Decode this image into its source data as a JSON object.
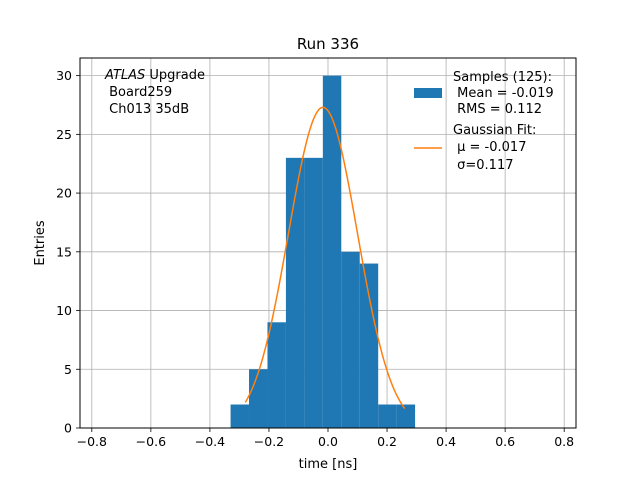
{
  "chart_data": {
    "type": "bar",
    "title": "Run 336",
    "xlabel": "time [ns]",
    "ylabel": "Entries",
    "xlim": [
      -0.84,
      0.84
    ],
    "ylim": [
      0,
      31.5
    ],
    "xticks": [
      -0.8,
      -0.6,
      -0.4,
      -0.2,
      0.0,
      0.2,
      0.4,
      0.6,
      0.8
    ],
    "xtick_labels": [
      "−0.8",
      "−0.6",
      "−0.4",
      "−0.2",
      "0.0",
      "0.2",
      "0.4",
      "0.6",
      "0.8"
    ],
    "yticks": [
      0,
      5,
      10,
      15,
      20,
      25,
      30
    ],
    "ytick_labels": [
      "0",
      "5",
      "10",
      "15",
      "20",
      "25",
      "30"
    ],
    "grid": true,
    "legend_position": "top-right",
    "annotation": {
      "italic": "ATLAS",
      "line1_rest": " Upgrade",
      "line2": " Board259",
      "line3": " Ch013 35dB"
    },
    "series": [
      {
        "name": "Samples (125):",
        "legend_lines": [
          " Mean = -0.019",
          " RMS = 0.112"
        ],
        "kind": "histogram",
        "color": "#1f77b4",
        "bin_edges": [
          -0.33,
          -0.2675,
          -0.205,
          -0.1425,
          -0.08,
          -0.0175,
          0.045,
          0.1075,
          0.17,
          0.2325,
          0.295
        ],
        "counts": [
          2,
          5,
          9,
          23,
          23,
          30,
          15,
          14,
          2,
          2
        ]
      },
      {
        "name": "Gaussian Fit:",
        "legend_lines": [
          " μ = -0.017",
          " σ=0.117"
        ],
        "kind": "line",
        "color": "#ff7f0e",
        "mu": -0.017,
        "sigma": 0.117,
        "amplitude": 27.3,
        "x_range": [
          -0.28,
          0.26
        ]
      }
    ]
  }
}
